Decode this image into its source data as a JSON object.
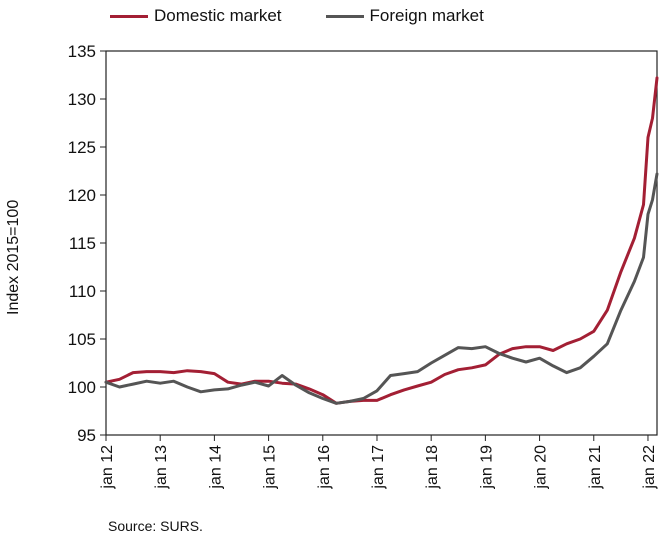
{
  "chart_data": {
    "type": "line",
    "ylabel": "Index 2015=100",
    "ylim": [
      95,
      135
    ],
    "yticks": [
      95,
      100,
      105,
      110,
      115,
      120,
      125,
      130,
      135
    ],
    "xticks": [
      "jan 12",
      "jan 13",
      "jan 14",
      "jan 15",
      "jan 16",
      "jan 17",
      "jan 18",
      "jan 19",
      "jan 20",
      "jan 21",
      "jan 22"
    ],
    "x_start": "2012-01",
    "x_end": "2022-03",
    "legend_position": "top",
    "grid": false,
    "source": "Source: SURS.",
    "series": [
      {
        "name": "Domestic market",
        "color": "#a31f34",
        "points": [
          [
            "2012-01",
            100.5
          ],
          [
            "2012-04",
            100.8
          ],
          [
            "2012-07",
            101.5
          ],
          [
            "2012-10",
            101.6
          ],
          [
            "2013-01",
            101.6
          ],
          [
            "2013-04",
            101.5
          ],
          [
            "2013-07",
            101.7
          ],
          [
            "2013-10",
            101.6
          ],
          [
            "2014-01",
            101.4
          ],
          [
            "2014-04",
            100.5
          ],
          [
            "2014-07",
            100.3
          ],
          [
            "2014-10",
            100.6
          ],
          [
            "2015-01",
            100.6
          ],
          [
            "2015-04",
            100.4
          ],
          [
            "2015-07",
            100.3
          ],
          [
            "2015-10",
            99.8
          ],
          [
            "2016-01",
            99.2
          ],
          [
            "2016-04",
            98.3
          ],
          [
            "2016-07",
            98.5
          ],
          [
            "2016-10",
            98.6
          ],
          [
            "2017-01",
            98.6
          ],
          [
            "2017-04",
            99.2
          ],
          [
            "2017-07",
            99.7
          ],
          [
            "2017-10",
            100.1
          ],
          [
            "2018-01",
            100.5
          ],
          [
            "2018-04",
            101.3
          ],
          [
            "2018-07",
            101.8
          ],
          [
            "2018-10",
            102.0
          ],
          [
            "2019-01",
            102.3
          ],
          [
            "2019-04",
            103.4
          ],
          [
            "2019-07",
            104.0
          ],
          [
            "2019-10",
            104.2
          ],
          [
            "2020-01",
            104.2
          ],
          [
            "2020-04",
            103.8
          ],
          [
            "2020-07",
            104.5
          ],
          [
            "2020-10",
            105.0
          ],
          [
            "2021-01",
            105.8
          ],
          [
            "2021-04",
            108.0
          ],
          [
            "2021-07",
            112.0
          ],
          [
            "2021-10",
            115.5
          ],
          [
            "2021-12",
            119.0
          ],
          [
            "2022-01",
            126.0
          ],
          [
            "2022-02",
            128.0
          ],
          [
            "2022-03",
            132.2
          ]
        ]
      },
      {
        "name": "Foreign market",
        "color": "#555555",
        "points": [
          [
            "2012-01",
            100.5
          ],
          [
            "2012-04",
            100.0
          ],
          [
            "2012-07",
            100.3
          ],
          [
            "2012-10",
            100.6
          ],
          [
            "2013-01",
            100.4
          ],
          [
            "2013-04",
            100.6
          ],
          [
            "2013-07",
            100.0
          ],
          [
            "2013-10",
            99.5
          ],
          [
            "2014-01",
            99.7
          ],
          [
            "2014-04",
            99.8
          ],
          [
            "2014-07",
            100.2
          ],
          [
            "2014-10",
            100.5
          ],
          [
            "2015-01",
            100.1
          ],
          [
            "2015-04",
            101.2
          ],
          [
            "2015-07",
            100.2
          ],
          [
            "2015-10",
            99.4
          ],
          [
            "2016-01",
            98.8
          ],
          [
            "2016-04",
            98.3
          ],
          [
            "2016-07",
            98.5
          ],
          [
            "2016-10",
            98.8
          ],
          [
            "2017-01",
            99.6
          ],
          [
            "2017-04",
            101.2
          ],
          [
            "2017-07",
            101.4
          ],
          [
            "2017-10",
            101.6
          ],
          [
            "2018-01",
            102.5
          ],
          [
            "2018-04",
            103.3
          ],
          [
            "2018-07",
            104.1
          ],
          [
            "2018-10",
            104.0
          ],
          [
            "2019-01",
            104.2
          ],
          [
            "2019-04",
            103.5
          ],
          [
            "2019-07",
            103.0
          ],
          [
            "2019-10",
            102.6
          ],
          [
            "2020-01",
            103.0
          ],
          [
            "2020-04",
            102.2
          ],
          [
            "2020-07",
            101.5
          ],
          [
            "2020-10",
            102.0
          ],
          [
            "2021-01",
            103.2
          ],
          [
            "2021-04",
            104.5
          ],
          [
            "2021-07",
            108.0
          ],
          [
            "2021-10",
            111.0
          ],
          [
            "2021-12",
            113.5
          ],
          [
            "2022-01",
            118.0
          ],
          [
            "2022-02",
            119.5
          ],
          [
            "2022-03",
            122.2
          ]
        ]
      }
    ]
  }
}
